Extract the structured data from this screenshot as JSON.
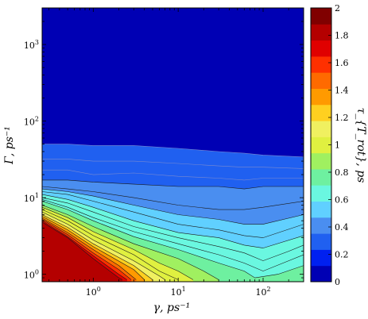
{
  "chart_data": {
    "type": "contour",
    "colorbar_label": "τ_{T_rot}, ps",
    "x": {
      "label": "γ, ps⁻¹",
      "scale": "log",
      "range": [
        0.25,
        300
      ],
      "ticks": [
        {
          "value": 1,
          "base": "10",
          "exp": "0"
        },
        {
          "value": 10,
          "base": "10",
          "exp": "1"
        },
        {
          "value": 100,
          "base": "10",
          "exp": "2"
        }
      ]
    },
    "y": {
      "label": "Γ, ps⁻¹",
      "scale": "log",
      "range": [
        0.8,
        3000
      ],
      "ticks": [
        {
          "value": 1,
          "base": "10",
          "exp": "0"
        },
        {
          "value": 10,
          "base": "10",
          "exp": "1"
        },
        {
          "value": 100,
          "base": "10",
          "exp": "2"
        },
        {
          "value": 1000,
          "base": "10",
          "exp": "3"
        }
      ]
    },
    "colorbar": {
      "range": [
        0,
        2
      ],
      "tick_values": [
        0,
        0.2,
        0.4,
        0.6,
        0.8,
        1,
        1.2,
        1.4,
        1.6,
        1.8,
        2
      ],
      "tick_labels": [
        "0",
        "0.2",
        "0.4",
        "0.6",
        "0.8",
        "1",
        "1.2",
        "1.4",
        "1.6",
        "1.8",
        "2"
      ],
      "colors": [
        "#0000b4",
        "#0020f0",
        "#2060f0",
        "#4a8ef0",
        "#60d0ff",
        "#6af7e0",
        "#6ef0a0",
        "#a0f060",
        "#e0f040",
        "#f0f060",
        "#ffd020",
        "#ff9a00",
        "#ff6a00",
        "#ff3000",
        "#e00000",
        "#b40000",
        "#800000"
      ]
    },
    "contour_levels": [
      {
        "level": 0.2,
        "points": [
          [
            0.25,
            50
          ],
          [
            0.5,
            50
          ],
          [
            1,
            48
          ],
          [
            3,
            48
          ],
          [
            10,
            44
          ],
          [
            30,
            40
          ],
          [
            60,
            38
          ],
          [
            100,
            36
          ],
          [
            300,
            34
          ]
        ]
      },
      {
        "level": 0.25,
        "points": [
          [
            0.25,
            32
          ],
          [
            0.5,
            32
          ],
          [
            1,
            30
          ],
          [
            3,
            30
          ],
          [
            10,
            28
          ],
          [
            30,
            26
          ],
          [
            60,
            25
          ],
          [
            100,
            25
          ],
          [
            300,
            24
          ]
        ]
      },
      {
        "level": 0.3,
        "points": [
          [
            0.25,
            23
          ],
          [
            0.5,
            23
          ],
          [
            1,
            20
          ],
          [
            3,
            21
          ],
          [
            10,
            19
          ],
          [
            30,
            18
          ],
          [
            60,
            17
          ],
          [
            100,
            18
          ],
          [
            300,
            18
          ]
        ]
      },
      {
        "level": 0.35,
        "points": [
          [
            0.25,
            17
          ],
          [
            0.5,
            17
          ],
          [
            1,
            16
          ],
          [
            3,
            15
          ],
          [
            10,
            14
          ],
          [
            30,
            14
          ],
          [
            60,
            13
          ],
          [
            100,
            14
          ],
          [
            300,
            14
          ]
        ]
      },
      {
        "level": 0.4,
        "points": [
          [
            0.25,
            14
          ],
          [
            0.5,
            13
          ],
          [
            1,
            12
          ],
          [
            3,
            10
          ],
          [
            10,
            8
          ],
          [
            30,
            7
          ],
          [
            60,
            7
          ],
          [
            100,
            7.5
          ],
          [
            300,
            9
          ]
        ]
      },
      {
        "level": 0.45,
        "points": [
          [
            0.25,
            13
          ],
          [
            0.5,
            12
          ],
          [
            1,
            10.5
          ],
          [
            3,
            8
          ],
          [
            10,
            6
          ],
          [
            30,
            5.2
          ],
          [
            60,
            4.5
          ],
          [
            100,
            4.5
          ],
          [
            300,
            6
          ]
        ]
      },
      {
        "level": 0.5,
        "points": [
          [
            0.25,
            12
          ],
          [
            0.5,
            11
          ],
          [
            1,
            9
          ],
          [
            3,
            6.5
          ],
          [
            10,
            4.5
          ],
          [
            30,
            3.8
          ],
          [
            60,
            3.2
          ],
          [
            100,
            3
          ],
          [
            300,
            4.5
          ]
        ]
      },
      {
        "level": 0.55,
        "points": [
          [
            0.25,
            11
          ],
          [
            0.5,
            9.5
          ],
          [
            1,
            7.5
          ],
          [
            3,
            5
          ],
          [
            10,
            3.5
          ],
          [
            30,
            3
          ],
          [
            60,
            2.4
          ],
          [
            100,
            2.2
          ],
          [
            300,
            3.2
          ]
        ]
      },
      {
        "level": 0.6,
        "points": [
          [
            0.25,
            10
          ],
          [
            0.5,
            8.5
          ],
          [
            1,
            6.5
          ],
          [
            3,
            4.2
          ],
          [
            10,
            3
          ],
          [
            30,
            2.3
          ],
          [
            60,
            1.9
          ],
          [
            100,
            1.5
          ],
          [
            200,
            2
          ],
          [
            300,
            2.4
          ]
        ]
      },
      {
        "level": 0.65,
        "points": [
          [
            0.25,
            9.5
          ],
          [
            0.5,
            7.5
          ],
          [
            1,
            5.5
          ],
          [
            3,
            3.6
          ],
          [
            10,
            2.5
          ],
          [
            30,
            1.8
          ],
          [
            60,
            1.4
          ],
          [
            100,
            1.1
          ],
          [
            200,
            1.5
          ],
          [
            300,
            1.8
          ]
        ]
      },
      {
        "level": 0.7,
        "points": [
          [
            0.25,
            9
          ],
          [
            0.5,
            7
          ],
          [
            1,
            5
          ],
          [
            3,
            3.1
          ],
          [
            10,
            2.1
          ],
          [
            30,
            1.4
          ],
          [
            60,
            1.1
          ],
          [
            80,
            0.9
          ],
          [
            150,
            1
          ],
          [
            300,
            1.3
          ]
        ]
      },
      {
        "level": 0.8,
        "points": [
          [
            0.25,
            8
          ],
          [
            0.5,
            6
          ],
          [
            1,
            4.2
          ],
          [
            3,
            2.5
          ],
          [
            10,
            1.6
          ],
          [
            20,
            1.1
          ],
          [
            30,
            0.85
          ]
        ]
      },
      {
        "level": 0.9,
        "points": [
          [
            0.25,
            7.5
          ],
          [
            0.5,
            5.5
          ],
          [
            1,
            3.6
          ],
          [
            3,
            2.1
          ],
          [
            6,
            1.4
          ],
          [
            10,
            1.1
          ],
          [
            15,
            0.85
          ]
        ]
      },
      {
        "level": 1.0,
        "points": [
          [
            0.25,
            7
          ],
          [
            0.5,
            5
          ],
          [
            1,
            3.2
          ],
          [
            3,
            1.8
          ],
          [
            6,
            1.1
          ],
          [
            10,
            0.85
          ]
        ]
      },
      {
        "level": 1.1,
        "points": [
          [
            0.25,
            6.5
          ],
          [
            0.5,
            4.5
          ],
          [
            1,
            2.8
          ],
          [
            3,
            1.5
          ],
          [
            6,
            0.95
          ],
          [
            7,
            0.85
          ]
        ]
      },
      {
        "level": 1.2,
        "points": [
          [
            0.25,
            6
          ],
          [
            0.5,
            4.1
          ],
          [
            1,
            2.5
          ],
          [
            3,
            1.3
          ],
          [
            5,
            0.85
          ]
        ]
      },
      {
        "level": 1.3,
        "points": [
          [
            0.25,
            5.7
          ],
          [
            0.5,
            3.8
          ],
          [
            1,
            2.3
          ],
          [
            3,
            1.15
          ],
          [
            4,
            0.85
          ]
        ]
      },
      {
        "level": 1.4,
        "points": [
          [
            0.25,
            5.4
          ],
          [
            0.5,
            3.5
          ],
          [
            1,
            2.1
          ],
          [
            2,
            1.3
          ],
          [
            3.2,
            0.85
          ]
        ]
      },
      {
        "level": 1.5,
        "points": [
          [
            0.25,
            5.2
          ],
          [
            0.5,
            3.3
          ],
          [
            1,
            1.9
          ],
          [
            2,
            1.15
          ],
          [
            2.8,
            0.85
          ]
        ]
      },
      {
        "level": 1.6,
        "points": [
          [
            0.25,
            5
          ],
          [
            0.5,
            3.1
          ],
          [
            1,
            1.75
          ],
          [
            2,
            1
          ],
          [
            2.5,
            0.85
          ]
        ]
      },
      {
        "level": 1.8,
        "points": [
          [
            0.25,
            4.8
          ],
          [
            0.5,
            3
          ],
          [
            1,
            1.6
          ],
          [
            2,
            0.9
          ],
          [
            2.2,
            0.85
          ]
        ]
      }
    ]
  }
}
